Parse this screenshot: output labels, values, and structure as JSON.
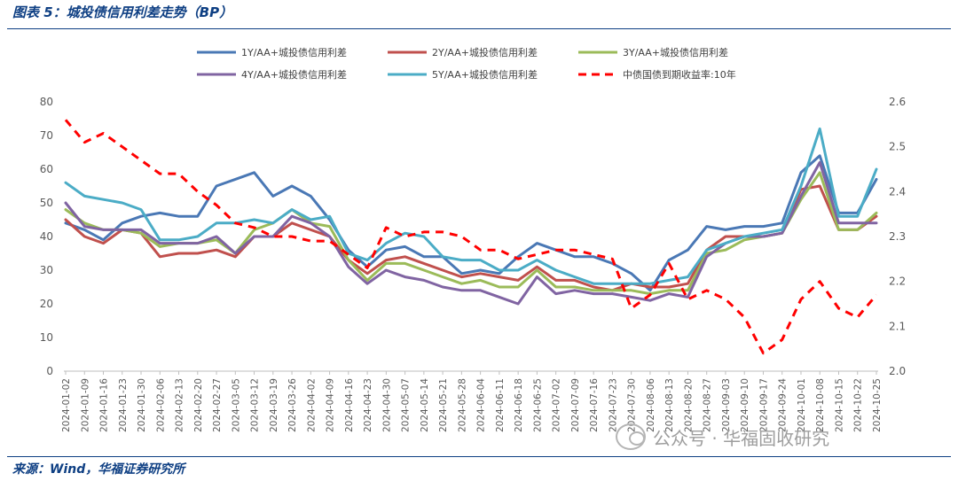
{
  "figure": {
    "title": "图表 5：城投债信用利差走势（BP）",
    "source": "来源：Wind，华福证券研究所",
    "watermark": "公众号 · 华福固收研究"
  },
  "chart_data": {
    "type": "line",
    "x": [
      "2024-01-02",
      "2024-01-09",
      "2024-01-16",
      "2024-01-23",
      "2024-01-30",
      "2024-02-06",
      "2024-02-13",
      "2024-02-20",
      "2024-02-27",
      "2024-03-05",
      "2024-03-12",
      "2024-03-19",
      "2024-03-26",
      "2024-04-02",
      "2024-04-09",
      "2024-04-16",
      "2024-04-23",
      "2024-04-30",
      "2024-05-07",
      "2024-05-14",
      "2024-05-21",
      "2024-05-28",
      "2024-06-04",
      "2024-06-11",
      "2024-06-18",
      "2024-06-25",
      "2024-07-02",
      "2024-07-09",
      "2024-07-16",
      "2024-07-23",
      "2024-07-30",
      "2024-08-06",
      "2024-08-13",
      "2024-08-20",
      "2024-08-27",
      "2024-09-03",
      "2024-09-10",
      "2024-09-17",
      "2024-09-24",
      "2024-10-01",
      "2024-10-08",
      "2024-10-15",
      "2024-10-22",
      "2024-10-25"
    ],
    "y_left": {
      "min": 0,
      "max": 80,
      "ticks": [
        0,
        10,
        20,
        30,
        40,
        50,
        60,
        70,
        80
      ]
    },
    "y_right": {
      "min": 2.0,
      "max": 2.6,
      "ticks": [
        "2.0",
        "2.1",
        "2.2",
        "2.3",
        "2.4",
        "2.5",
        "2.6"
      ]
    },
    "legend_placement": "top",
    "grid": false,
    "series": [
      {
        "name": "1Y/AA+城投债信用利差",
        "axis": "left",
        "color": "#4a78b5",
        "dash": false,
        "values": [
          44,
          42,
          39,
          44,
          46,
          47,
          46,
          46,
          55,
          57,
          59,
          52,
          55,
          52,
          45,
          36,
          31,
          36,
          37,
          34,
          34,
          29,
          30,
          29,
          34,
          38,
          36,
          34,
          34,
          32,
          29,
          24,
          33,
          36,
          43,
          42,
          43,
          43,
          44,
          59,
          64,
          47,
          47,
          57
        ]
      },
      {
        "name": "2Y/AA+城投债信用利差",
        "axis": "left",
        "color": "#c0504d",
        "dash": false,
        "values": [
          45,
          40,
          38,
          42,
          41,
          34,
          35,
          35,
          36,
          34,
          40,
          40,
          44,
          42,
          40,
          33,
          29,
          33,
          34,
          32,
          30,
          28,
          29,
          28,
          27,
          31,
          27,
          27,
          25,
          24,
          26,
          25,
          25,
          26,
          36,
          40,
          40,
          40,
          41,
          54,
          55,
          42,
          42,
          46
        ]
      },
      {
        "name": "3Y/AA+城投债信用利差",
        "axis": "left",
        "color": "#9bbb59",
        "dash": false,
        "values": [
          48,
          44,
          42,
          42,
          41,
          37,
          38,
          38,
          39,
          35,
          42,
          44,
          48,
          44,
          43,
          33,
          27,
          32,
          32,
          30,
          28,
          26,
          27,
          25,
          25,
          30,
          25,
          25,
          24,
          24,
          24,
          23,
          24,
          24,
          35,
          36,
          39,
          40,
          41,
          51,
          59,
          42,
          42,
          47
        ]
      },
      {
        "name": "4Y/AA+城投债信用利差",
        "axis": "left",
        "color": "#8064a2",
        "dash": false,
        "values": [
          50,
          43,
          42,
          42,
          42,
          38,
          38,
          38,
          40,
          35,
          40,
          40,
          46,
          44,
          40,
          31,
          26,
          30,
          28,
          27,
          25,
          24,
          24,
          22,
          20,
          28,
          23,
          24,
          23,
          23,
          22,
          21,
          23,
          22,
          34,
          38,
          40,
          40,
          41,
          52,
          62,
          44,
          44,
          44
        ]
      },
      {
        "name": "5Y/AA+城投债信用利差",
        "axis": "left",
        "color": "#4bacc6",
        "dash": false,
        "values": [
          56,
          52,
          51,
          50,
          48,
          39,
          39,
          40,
          44,
          44,
          45,
          44,
          48,
          45,
          46,
          35,
          33,
          38,
          41,
          40,
          34,
          33,
          33,
          30,
          30,
          33,
          30,
          28,
          26,
          26,
          26,
          26,
          27,
          28,
          36,
          38,
          40,
          41,
          42,
          55,
          72,
          46,
          46,
          60
        ]
      },
      {
        "name": "中债国债到期收益率:10年",
        "axis": "right",
        "color": "#ff0000",
        "dash": true,
        "values": [
          2.56,
          2.51,
          2.53,
          2.5,
          2.47,
          2.44,
          2.44,
          2.4,
          2.37,
          2.33,
          2.32,
          2.3,
          2.3,
          2.29,
          2.29,
          2.26,
          2.23,
          2.32,
          2.3,
          2.31,
          2.31,
          2.3,
          2.27,
          2.27,
          2.25,
          2.26,
          2.27,
          2.27,
          2.26,
          2.25,
          2.14,
          2.17,
          2.24,
          2.16,
          2.18,
          2.16,
          2.12,
          2.04,
          2.07,
          2.16,
          2.2,
          2.14,
          2.12,
          2.17
        ]
      }
    ]
  }
}
